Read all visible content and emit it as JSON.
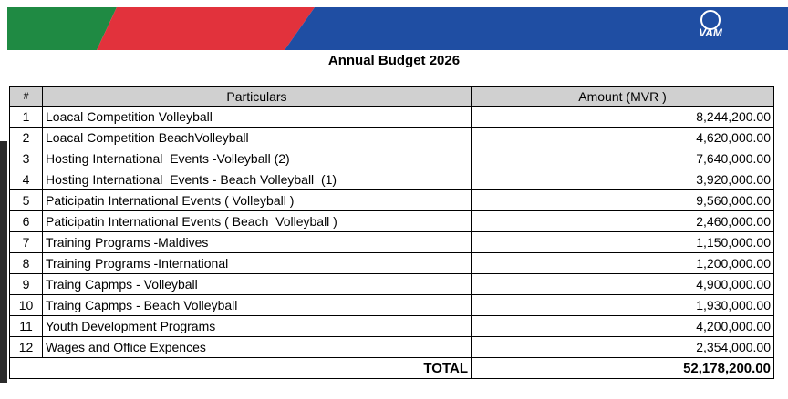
{
  "header": {
    "logo": "VAM",
    "title": "Annual Budget 2026"
  },
  "table": {
    "columns": [
      "#",
      "Particulars",
      "Amount (MVR )"
    ],
    "rows": [
      [
        "1",
        "Loacal Competition Volleyball",
        "8,244,200.00"
      ],
      [
        "2",
        "Loacal Competition BeachVolleyball",
        "4,620,000.00"
      ],
      [
        "3",
        "Hosting International  Events -Volleyball (2)",
        "7,640,000.00"
      ],
      [
        "4",
        "Hosting International  Events - Beach Volleyball  (1)",
        "3,920,000.00"
      ],
      [
        "5",
        "Paticipatin International Events ( Volleyball )",
        "9,560,000.00"
      ],
      [
        "6",
        "Paticipatin International Events ( Beach  Volleyball )",
        "2,460,000.00"
      ],
      [
        "7",
        "Training Programs -Maldives",
        "1,150,000.00"
      ],
      [
        "8",
        "Training Programs -International",
        "1,200,000.00"
      ],
      [
        "9",
        "Traing Capmps - Volleyball",
        "4,900,000.00"
      ],
      [
        "10",
        "Traing Capmps - Beach Volleyball",
        "1,930,000.00"
      ],
      [
        "11",
        "Youth Development Programs",
        "4,200,000.00"
      ],
      [
        "12",
        "Wages and Office Expences",
        "2,354,000.00"
      ]
    ],
    "total": {
      "label": "TOTAL",
      "amount": "52,178,200.00"
    }
  }
}
